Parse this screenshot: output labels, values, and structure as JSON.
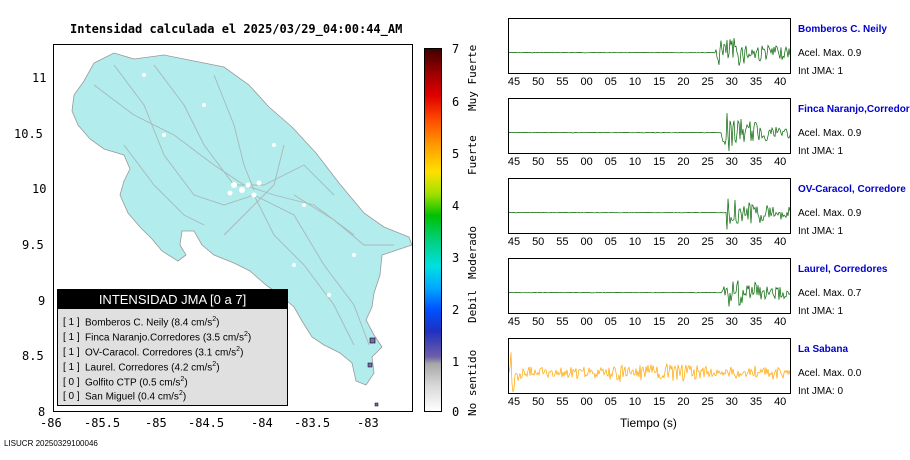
{
  "title": "Intensidad calculada el 2025/03/29_04:00:44_AM",
  "stamp": "LISUCR 20250329100046",
  "map": {
    "x_ticks": [
      "-86",
      "-85.5",
      "-85",
      "-84.5",
      "-84",
      "-83.5",
      "-83"
    ],
    "y_ticks": [
      "11",
      "10.5",
      "10",
      "9.5",
      "9",
      "8.5",
      "8"
    ],
    "fill_color": "#b2ecec"
  },
  "legend": {
    "title": "INTENSIDAD JMA [0 a 7]",
    "rows": [
      {
        "bracket": "[ 1 ]",
        "label": "Bomberos C. Neily (8.4 cm/s",
        "sup": "2",
        "tail": ")"
      },
      {
        "bracket": "[ 1 ]",
        "label": "Finca Naranjo.Corredores (3.5 cm/s",
        "sup": "2",
        "tail": ")"
      },
      {
        "bracket": "[ 1 ]",
        "label": "OV-Caracol. Corredores (3.1 cm/s",
        "sup": "2",
        "tail": ")"
      },
      {
        "bracket": "[ 1 ]",
        "label": "Laurel. Corredores (4.2 cm/s",
        "sup": "2",
        "tail": ")"
      },
      {
        "bracket": "[ 0 ]",
        "label": "Golfito CTP (0.5 cm/s",
        "sup": "2",
        "tail": ")"
      },
      {
        "bracket": "[ 0 ]",
        "label": "San Miguel (0.4 cm/s",
        "sup": "2",
        "tail": ")"
      }
    ]
  },
  "colorbar": {
    "numbers": [
      "7",
      "6",
      "5",
      "4",
      "3",
      "2",
      "1",
      "0"
    ],
    "words": [
      "Muy Fuerte",
      "Fuerte",
      "Moderado",
      "Debil",
      "No sentido"
    ]
  },
  "traces": [
    {
      "name": "Bomberos C. Neily",
      "acel": "Acel. Max. 0.9",
      "int": "Int JMA: 1",
      "color": "#006400",
      "onset": 0.73
    },
    {
      "name": "Finca Naranjo,Corredor",
      "acel": "Acel. Max. 0.9",
      "int": "Int JMA: 1",
      "color": "#006400",
      "onset": 0.75
    },
    {
      "name": "OV-Caracol, Corredore",
      "acel": "Acel. Max. 0.9",
      "int": "Int JMA: 1",
      "color": "#006400",
      "onset": 0.77
    },
    {
      "name": "Laurel, Corredores",
      "acel": "Acel. Max. 0.7",
      "int": "Int JMA: 1",
      "color": "#006400",
      "onset": 0.75
    },
    {
      "name": "La Sabana",
      "acel": "Acel. Max. 0.0",
      "int": "Int JMA: 0",
      "color": "#ffa500",
      "onset": 0.0
    }
  ],
  "time_ticks": [
    "45",
    "50",
    "55",
    "00",
    "05",
    "10",
    "15",
    "20",
    "25",
    "30",
    "35",
    "40"
  ],
  "time_label": "Tiempo (s)"
}
